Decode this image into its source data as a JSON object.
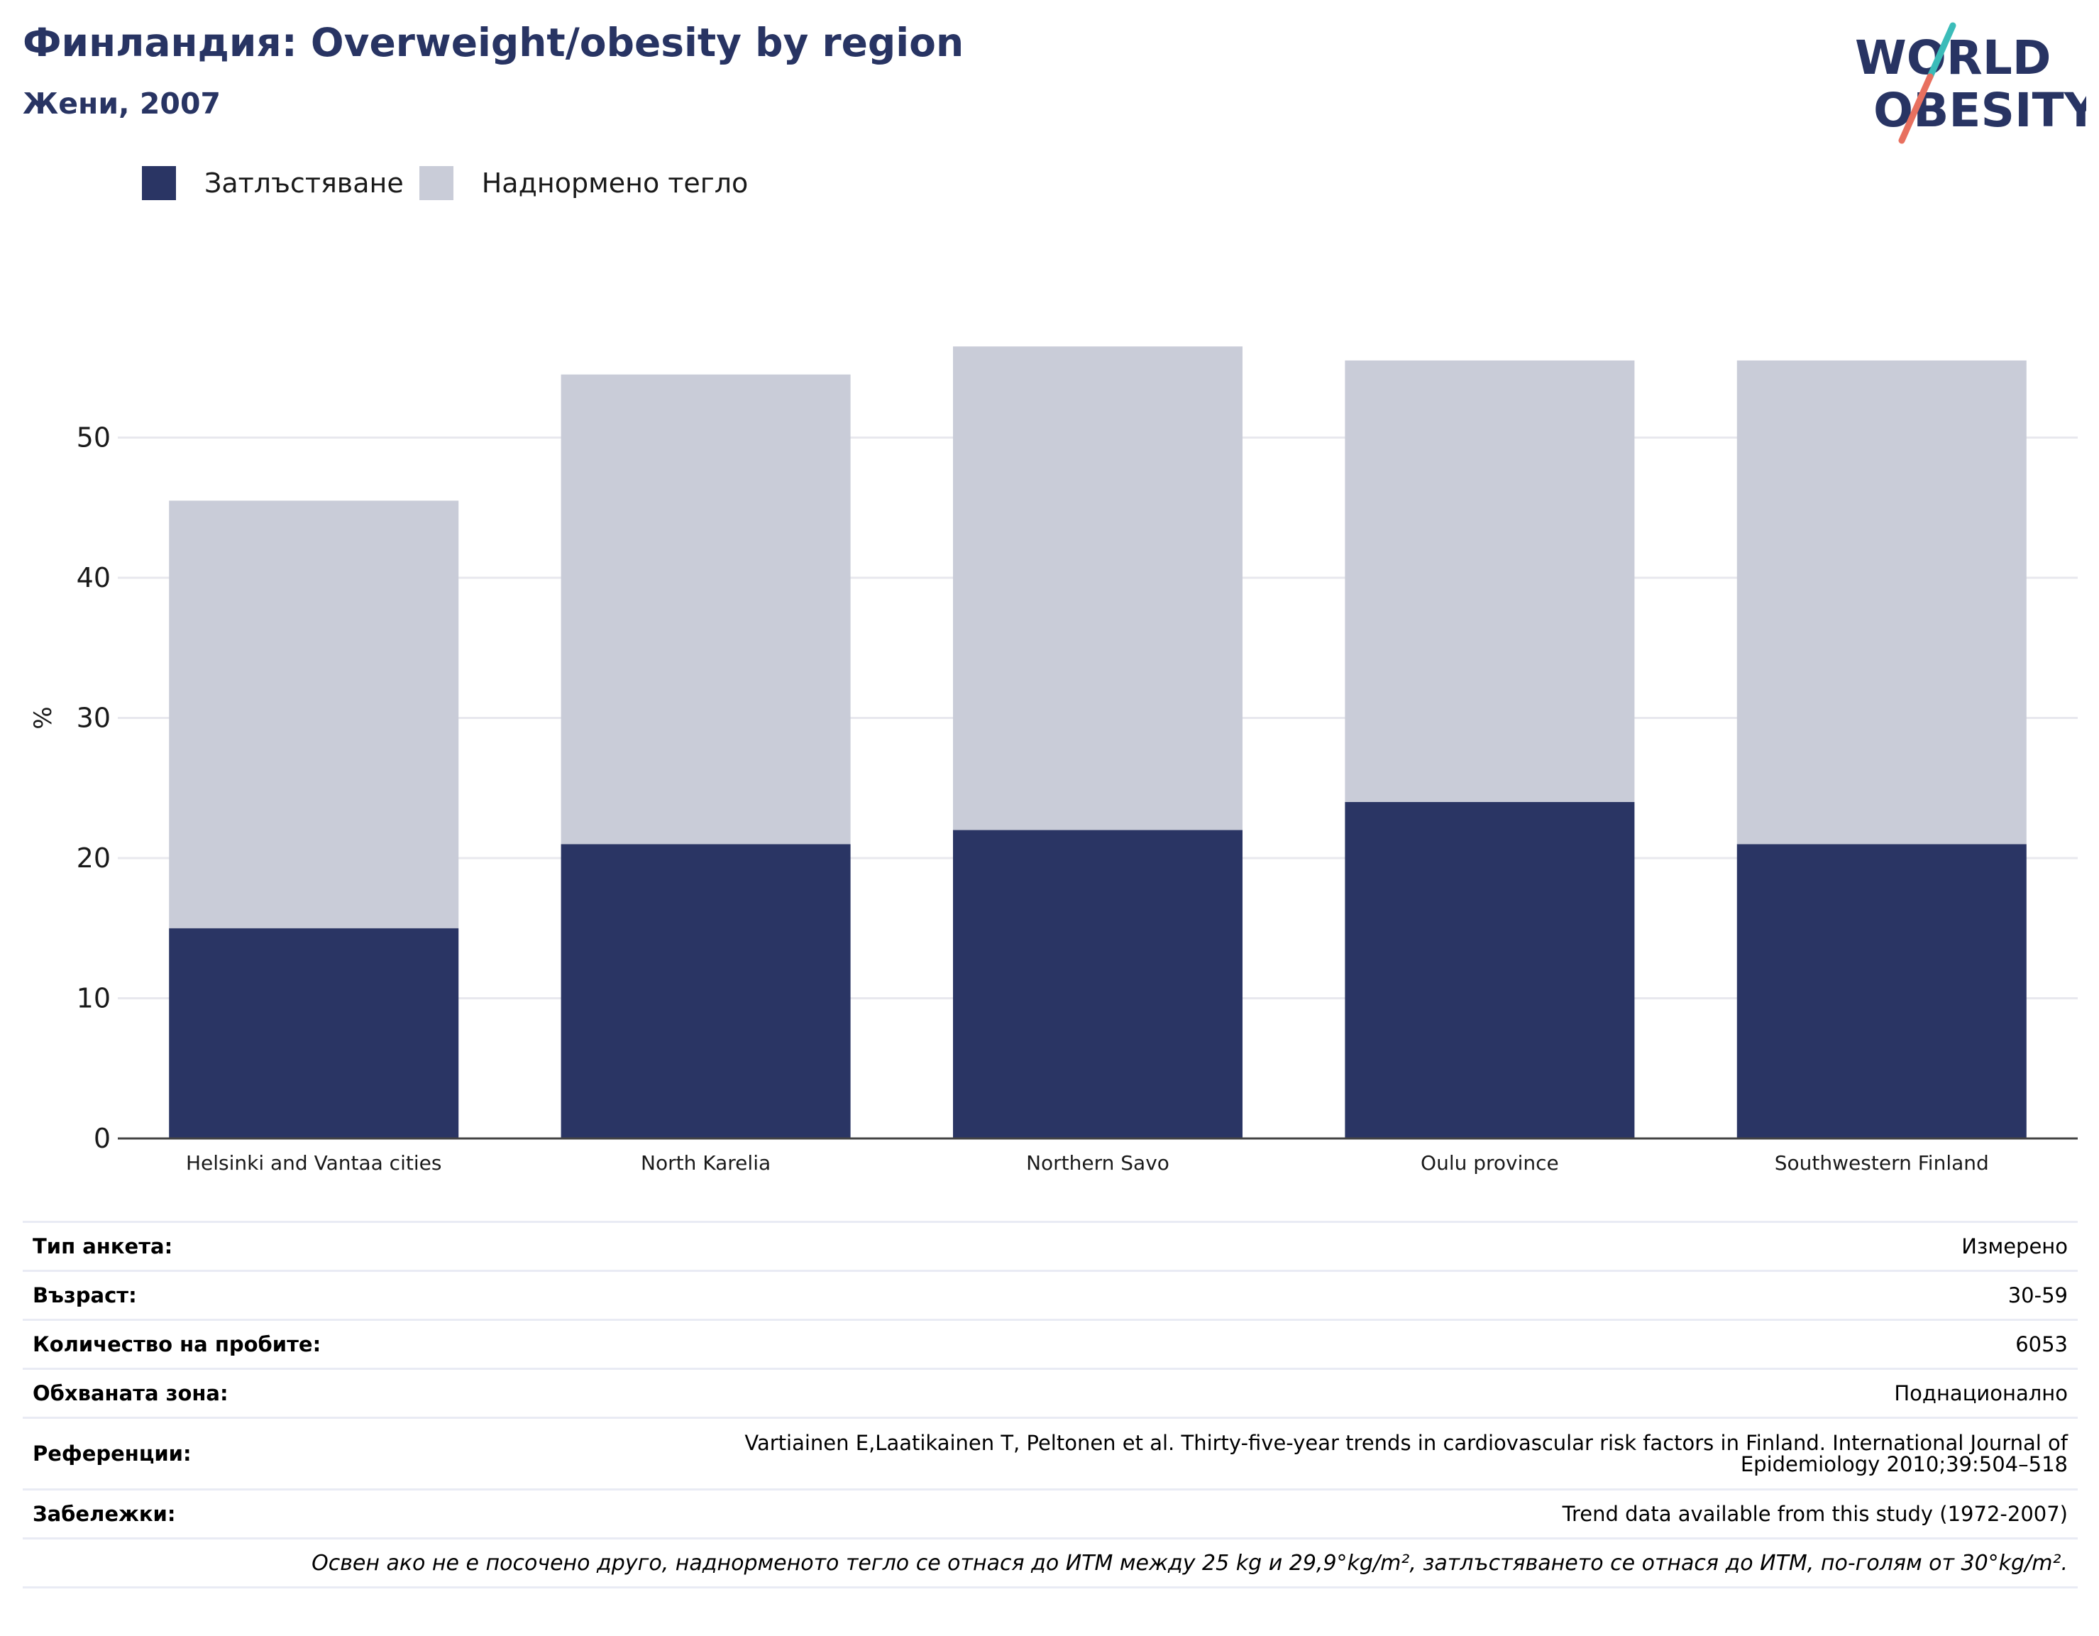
{
  "header": {
    "title": "Финландия: Overweight/obesity by region",
    "subtitle": "Жени, 2007"
  },
  "logo": {
    "line1": "WORLD",
    "line2": "OBESITY",
    "colors": {
      "text": "#283463",
      "slash_top": "#3bbcb9",
      "slash_bottom": "#e8705f"
    }
  },
  "colors": {
    "obesity": "#2a3564",
    "overweight": "#c9ccd8",
    "grid": "#e8e8ee",
    "axis": "#444444",
    "text": "#1a1a1a",
    "title": "#283463"
  },
  "chart_data": {
    "type": "bar",
    "stacked": true,
    "title": "Финландия: Overweight/obesity by region",
    "subtitle": "Жени, 2007",
    "ylabel": "%",
    "ylim": [
      0,
      55
    ],
    "yticks": [
      0,
      10,
      20,
      30,
      40,
      50
    ],
    "grid": true,
    "legend_position": "top-left",
    "categories": [
      "Helsinki and Vantaa cities",
      "North Karelia",
      "Northern Savo",
      "Oulu province",
      "Southwestern Finland"
    ],
    "series": [
      {
        "name": "Затлъстяване",
        "color": "#2a3564",
        "values": [
          15,
          21,
          22,
          24,
          21
        ]
      },
      {
        "name": "Наднормено тегло",
        "color": "#c9ccd8",
        "values": [
          30.5,
          33.5,
          34.5,
          31.5,
          34.5
        ]
      }
    ]
  },
  "info": {
    "rows": [
      {
        "label": "Тип анкета:",
        "value": "Измерено"
      },
      {
        "label": "Възраст:",
        "value": "30-59"
      },
      {
        "label": "Количество на пробите:",
        "value": "6053"
      },
      {
        "label": "Обхваната зона:",
        "value": "Поднационално"
      },
      {
        "label": "Референции:",
        "value_line1": "Vartiainen E,Laatikainen T, Peltonen et al. Thirty-five-year trends in cardiovascular risk factors in Finland. International Journal of",
        "value_line2": "Epidemiology 2010;39:504–518"
      },
      {
        "label": "Забележки:",
        "value": "Trend data available from this study (1972-2007)"
      }
    ],
    "footnote": "Освен ако не е посочено друго, наднорменото тегло се отнася до ИТМ между 25 kg и 29,9°kg/m², затлъстяването се отнася до ИТМ, по-голям от 30°kg/m²."
  }
}
